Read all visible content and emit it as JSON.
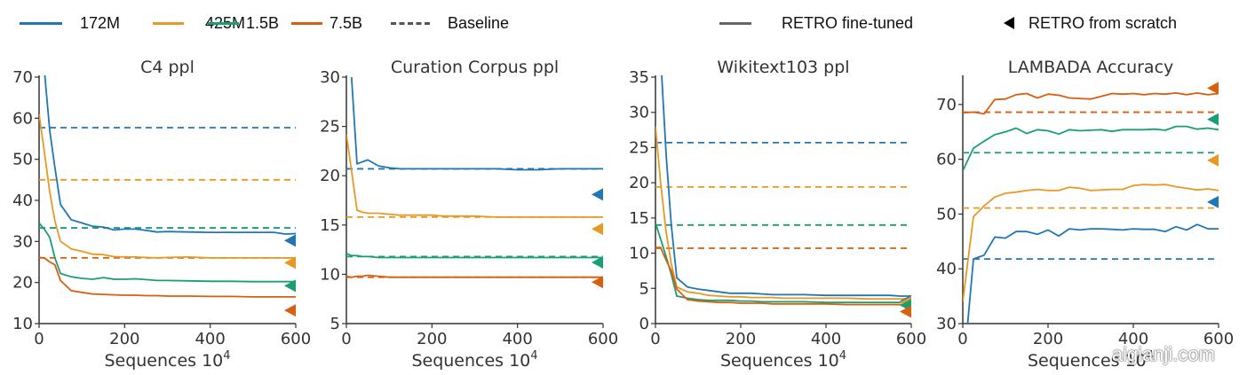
{
  "colors": {
    "172M": "#1f77b4",
    "425M": "#e69a24",
    "1.5B": "#1a9e77",
    "7.5B": "#d95f0e",
    "axis": "#333333",
    "baseline_legend": "#555555",
    "finetuned_legend": "#666666"
  },
  "legend": {
    "items": [
      {
        "label": "172M",
        "style": "solid",
        "color_key": "172M"
      },
      {
        "label": "425M",
        "style": "solid",
        "color_key": "425M"
      },
      {
        "label": "1.5B",
        "style": "solid",
        "color_key": "1.5B"
      },
      {
        "label": "7.5B",
        "style": "solid",
        "color_key": "7.5B"
      },
      {
        "label": "Baseline",
        "style": "dashed"
      },
      {
        "label": "RETRO fine-tuned",
        "style": "solid-gray"
      },
      {
        "label": "RETRO from scratch",
        "style": "triangle-marker"
      }
    ]
  },
  "watermark": "aigianji.com",
  "chart_data": [
    {
      "type": "line",
      "title": "C4 ppl",
      "xlabel": "Sequences 10",
      "xlabel_exp": "4",
      "ylabel": "",
      "xlim": [
        0,
        600
      ],
      "ylim": [
        10,
        70
      ],
      "xticks": [
        0,
        200,
        400,
        600
      ],
      "yticks": [
        10,
        20,
        30,
        40,
        50,
        60,
        70
      ],
      "x": [
        0,
        12,
        25,
        37,
        50,
        75,
        100,
        125,
        150,
        175,
        200,
        225,
        250,
        275,
        300,
        350,
        400,
        450,
        500,
        550,
        575,
        600
      ],
      "series": [
        {
          "name": "172M",
          "values": [
            null,
            72,
            57,
            48,
            39,
            35.3,
            34.5,
            33.7,
            33.5,
            32.8,
            33.0,
            33.0,
            32.7,
            32.3,
            32.4,
            32.3,
            32.2,
            32.2,
            32.2,
            32.2,
            31.8,
            31.9
          ]
        },
        {
          "name": "425M",
          "values": [
            61,
            52,
            42,
            35,
            30,
            28.2,
            27.6,
            26.9,
            26.8,
            26.3,
            26.2,
            26.2,
            26.1,
            26.0,
            26.1,
            26.2,
            26.0,
            26.0,
            26.0,
            26.0,
            26.0,
            26.0
          ]
        },
        {
          "name": "1.5B",
          "values": [
            34.5,
            33,
            31,
            26,
            22.2,
            21.4,
            21.0,
            20.8,
            21.2,
            20.8,
            20.8,
            20.9,
            20.7,
            20.5,
            20.5,
            20.4,
            20.3,
            20.3,
            20.2,
            20.2,
            20.2,
            20.2
          ]
        },
        {
          "name": "7.5B",
          "values": [
            26.1,
            26.0,
            25,
            24.3,
            20.5,
            18.0,
            17.6,
            17.2,
            17.1,
            17.0,
            16.9,
            16.9,
            16.8,
            16.8,
            16.7,
            16.7,
            16.6,
            16.6,
            16.5,
            16.5,
            16.5,
            16.5
          ]
        }
      ],
      "baselines": {
        "172M": 57.7,
        "425M": 45.0,
        "1.5B": 33.3,
        "7.5B": 26.0
      },
      "retro_from_scratch": {
        "172M": 30.2,
        "425M": 24.8,
        "1.5B": 19.2,
        "7.5B": 13.2
      }
    },
    {
      "type": "line",
      "title": "Curation Corpus ppl",
      "xlabel": "Sequences 10",
      "xlabel_exp": "4",
      "ylabel": "",
      "xlim": [
        0,
        600
      ],
      "ylim": [
        5,
        30
      ],
      "xticks": [
        0,
        200,
        400,
        600
      ],
      "yticks": [
        5,
        10,
        15,
        20,
        25,
        30
      ],
      "x": [
        0,
        12,
        25,
        37,
        50,
        75,
        100,
        125,
        150,
        175,
        200,
        225,
        250,
        275,
        300,
        350,
        400,
        450,
        500,
        550,
        575,
        600
      ],
      "series": [
        {
          "name": "172M",
          "values": [
            null,
            30,
            21.2,
            21.4,
            21.6,
            21.0,
            20.8,
            20.7,
            20.7,
            20.7,
            20.7,
            20.7,
            20.7,
            20.7,
            20.7,
            20.7,
            20.6,
            20.6,
            20.7,
            20.7,
            20.7,
            20.7
          ]
        },
        {
          "name": "425M",
          "values": [
            24.2,
            20.5,
            16.5,
            16.3,
            16.2,
            16.2,
            16.1,
            16.0,
            16.0,
            16.0,
            16.0,
            15.9,
            15.9,
            15.9,
            15.9,
            15.8,
            15.8,
            15.8,
            15.8,
            15.8,
            15.8,
            15.8
          ]
        },
        {
          "name": "1.5B",
          "values": [
            12.1,
            11.9,
            11.9,
            11.8,
            11.8,
            11.7,
            11.7,
            11.7,
            11.7,
            11.7,
            11.7,
            11.7,
            11.7,
            11.7,
            11.7,
            11.7,
            11.7,
            11.7,
            11.7,
            11.7,
            11.7,
            11.7
          ]
        },
        {
          "name": "7.5B",
          "values": [
            9.8,
            9.7,
            9.8,
            9.8,
            9.9,
            9.8,
            9.7,
            9.7,
            9.7,
            9.7,
            9.7,
            9.7,
            9.7,
            9.7,
            9.7,
            9.7,
            9.7,
            9.7,
            9.7,
            9.7,
            9.7,
            9.7
          ]
        }
      ],
      "baselines": {
        "172M": 20.7,
        "425M": 15.8,
        "1.5B": 11.8,
        "7.5B": 9.7
      },
      "retro_from_scratch": {
        "172M": 18.1,
        "425M": 14.6,
        "1.5B": 11.2,
        "7.5B": 9.2
      }
    },
    {
      "type": "line",
      "title": "Wikitext103 ppl",
      "xlabel": "Sequences 10",
      "xlabel_exp": "4",
      "ylabel": "",
      "xlim": [
        0,
        600
      ],
      "ylim": [
        0,
        35
      ],
      "xticks": [
        0,
        200,
        400,
        600
      ],
      "yticks": [
        0,
        5,
        10,
        15,
        20,
        25,
        30,
        35
      ],
      "x": [
        0,
        12,
        25,
        37,
        50,
        75,
        100,
        125,
        150,
        175,
        200,
        225,
        250,
        275,
        300,
        350,
        400,
        450,
        500,
        550,
        575,
        600
      ],
      "series": [
        {
          "name": "172M",
          "values": [
            null,
            38,
            24,
            14,
            6.5,
            5.2,
            4.9,
            4.7,
            4.5,
            4.3,
            4.3,
            4.3,
            4.2,
            4.1,
            4.1,
            4.1,
            4.0,
            4.0,
            4.0,
            4.0,
            3.9,
            3.9
          ]
        },
        {
          "name": "425M",
          "values": [
            28,
            20,
            13,
            8.5,
            5.2,
            4.5,
            4.3,
            4.0,
            3.9,
            3.8,
            3.8,
            3.7,
            3.7,
            3.7,
            3.6,
            3.6,
            3.6,
            3.6,
            3.5,
            3.5,
            3.5,
            3.5
          ]
        },
        {
          "name": "1.5B",
          "values": [
            14.3,
            12,
            9.5,
            7,
            3.9,
            3.6,
            3.4,
            3.3,
            3.3,
            3.3,
            3.2,
            3.2,
            3.1,
            3.1,
            3.1,
            3.1,
            3.0,
            3.0,
            3.0,
            3.0,
            3.0,
            3.0
          ]
        },
        {
          "name": "7.5B",
          "values": [
            10.8,
            10.8,
            9,
            7.5,
            4.9,
            3.4,
            3.2,
            3.1,
            3.0,
            3.0,
            2.9,
            2.9,
            2.9,
            2.8,
            2.8,
            2.8,
            2.8,
            2.7,
            2.7,
            2.7,
            2.7,
            2.7
          ]
        }
      ],
      "baselines": {
        "172M": 25.7,
        "425M": 19.4,
        "1.5B": 14.0,
        "7.5B": 10.7
      },
      "retro_from_scratch": {
        "172M": 3.2,
        "425M": 3.0,
        "1.5B": 2.6,
        "7.5B": 1.7
      }
    },
    {
      "type": "line",
      "title": "LAMBADA Accuracy",
      "xlabel": "Sequences 10",
      "xlabel_exp": "4",
      "ylabel": "",
      "xlim": [
        0,
        600
      ],
      "ylim": [
        30,
        75
      ],
      "xticks": [
        0,
        200,
        400,
        600
      ],
      "yticks": [
        30,
        40,
        50,
        60,
        70
      ],
      "x": [
        0,
        25,
        50,
        75,
        100,
        125,
        150,
        175,
        200,
        225,
        250,
        275,
        300,
        325,
        350,
        375,
        400,
        425,
        450,
        475,
        500,
        525,
        550,
        575,
        600
      ],
      "series": [
        {
          "name": "172M",
          "values": [
            20,
            41.8,
            42.5,
            45.8,
            45.6,
            46.8,
            46.8,
            46.3,
            47.1,
            46.0,
            47.3,
            47.1,
            47.3,
            47.3,
            47.2,
            47.1,
            47.3,
            47.2,
            47.2,
            46.8,
            47.7,
            47.1,
            48.1,
            47.3,
            47.3
          ]
        },
        {
          "name": "425M",
          "values": [
            34,
            49.5,
            51.5,
            53.1,
            53.8,
            54.0,
            54.3,
            54.5,
            54.3,
            54.3,
            54.9,
            54.7,
            54.3,
            54.4,
            54.5,
            54.5,
            55.2,
            55.4,
            55.3,
            55.4,
            55.0,
            54.7,
            54.4,
            54.6,
            54.3
          ]
        },
        {
          "name": "1.5B",
          "values": [
            57.9,
            62.0,
            63.3,
            64.5,
            65.0,
            65.7,
            64.7,
            65.4,
            65.2,
            64.6,
            65.4,
            65.2,
            65.3,
            65.4,
            65.1,
            65.4,
            65.4,
            65.4,
            65.5,
            65.3,
            66.0,
            66.0,
            65.5,
            65.7,
            65.4
          ]
        },
        {
          "name": "7.5B",
          "values": [
            68.5,
            68.6,
            68.3,
            70.9,
            71.0,
            71.8,
            72.0,
            71.2,
            71.9,
            71.7,
            71.2,
            71.1,
            71.0,
            71.5,
            72.0,
            71.9,
            72.0,
            71.8,
            72.0,
            71.9,
            72.1,
            71.8,
            72.1,
            71.8,
            72.0
          ]
        }
      ],
      "baselines": {
        "172M": 41.8,
        "425M": 51.1,
        "1.5B": 61.2,
        "7.5B": 68.6
      },
      "retro_from_scratch": {
        "172M": 52.2,
        "425M": 59.8,
        "1.5B": 67.3,
        "7.5B": 73.0
      }
    }
  ]
}
